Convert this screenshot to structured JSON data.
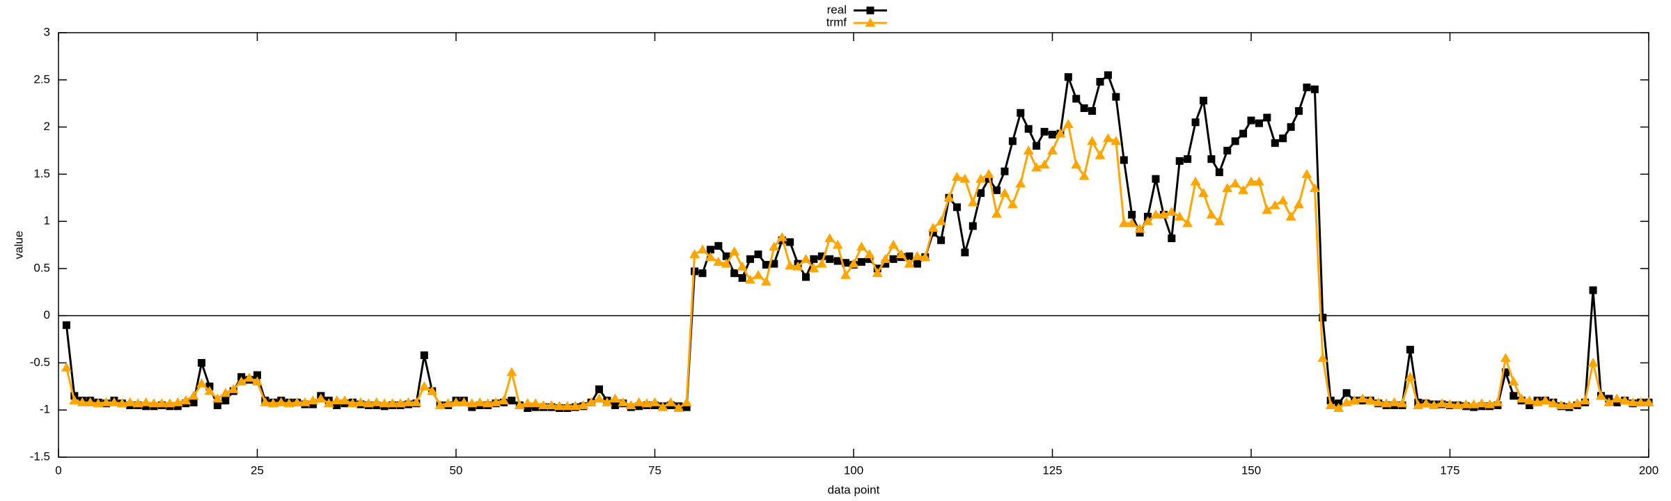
{
  "chart_data": {
    "type": "line",
    "xlabel": "data point",
    "ylabel": "value",
    "x": [
      1,
      2,
      3,
      4,
      5,
      6,
      7,
      8,
      9,
      10,
      11,
      12,
      13,
      14,
      15,
      16,
      17,
      18,
      19,
      20,
      21,
      22,
      23,
      24,
      25,
      26,
      27,
      28,
      29,
      30,
      31,
      32,
      33,
      34,
      35,
      36,
      37,
      38,
      39,
      40,
      41,
      42,
      43,
      44,
      45,
      46,
      47,
      48,
      49,
      50,
      51,
      52,
      53,
      54,
      55,
      56,
      57,
      58,
      59,
      60,
      61,
      62,
      63,
      64,
      65,
      66,
      67,
      68,
      69,
      70,
      71,
      72,
      73,
      74,
      75,
      76,
      77,
      78,
      79,
      80,
      81,
      82,
      83,
      84,
      85,
      86,
      87,
      88,
      89,
      90,
      91,
      92,
      93,
      94,
      95,
      96,
      97,
      98,
      99,
      100,
      101,
      102,
      103,
      104,
      105,
      106,
      107,
      108,
      109,
      110,
      111,
      112,
      113,
      114,
      115,
      116,
      117,
      118,
      119,
      120,
      121,
      122,
      123,
      124,
      125,
      126,
      127,
      128,
      129,
      130,
      131,
      132,
      133,
      134,
      135,
      136,
      137,
      138,
      139,
      140,
      141,
      142,
      143,
      144,
      145,
      146,
      147,
      148,
      149,
      150,
      151,
      152,
      153,
      154,
      155,
      156,
      157,
      158,
      159,
      160,
      161,
      162,
      163,
      164,
      165,
      166,
      167,
      168,
      169,
      170,
      171,
      172,
      173,
      174,
      175,
      176,
      177,
      178,
      179,
      180,
      181,
      182,
      183,
      184,
      185,
      186,
      187,
      188,
      189,
      190,
      191,
      192,
      193,
      194,
      195,
      196,
      197,
      198,
      199,
      200
    ],
    "series": [
      {
        "name": "real",
        "color": "#000000",
        "marker": "square",
        "values": [
          -0.1,
          -0.85,
          -0.9,
          -0.9,
          -0.92,
          -0.93,
          -0.9,
          -0.93,
          -0.95,
          -0.95,
          -0.96,
          -0.96,
          -0.95,
          -0.96,
          -0.96,
          -0.93,
          -0.92,
          -0.5,
          -0.75,
          -0.95,
          -0.9,
          -0.8,
          -0.65,
          -0.68,
          -0.63,
          -0.9,
          -0.92,
          -0.9,
          -0.92,
          -0.92,
          -0.94,
          -0.94,
          -0.85,
          -0.9,
          -0.95,
          -0.93,
          -0.92,
          -0.94,
          -0.95,
          -0.95,
          -0.96,
          -0.95,
          -0.95,
          -0.94,
          -0.93,
          -0.42,
          -0.8,
          -0.95,
          -0.95,
          -0.9,
          -0.9,
          -0.97,
          -0.95,
          -0.95,
          -0.93,
          -0.92,
          -0.9,
          -0.95,
          -0.98,
          -0.97,
          -0.97,
          -0.97,
          -0.98,
          -0.98,
          -0.97,
          -0.96,
          -0.92,
          -0.78,
          -0.9,
          -0.95,
          -0.93,
          -0.97,
          -0.96,
          -0.95,
          -0.95,
          -0.96,
          -0.95,
          -0.96,
          -0.97,
          0.47,
          0.45,
          0.7,
          0.74,
          0.63,
          0.45,
          0.4,
          0.6,
          0.65,
          0.54,
          0.55,
          0.8,
          0.78,
          0.55,
          0.41,
          0.6,
          0.63,
          0.6,
          0.58,
          0.56,
          0.54,
          0.57,
          0.6,
          0.5,
          0.55,
          0.6,
          0.62,
          0.63,
          0.55,
          0.62,
          0.88,
          0.8,
          1.25,
          1.15,
          0.67,
          0.95,
          1.3,
          1.45,
          1.33,
          1.53,
          1.85,
          2.15,
          1.98,
          1.8,
          1.95,
          1.92,
          1.93,
          2.53,
          2.3,
          2.2,
          2.17,
          2.48,
          2.55,
          2.32,
          1.65,
          1.07,
          0.88,
          1.05,
          1.45,
          1.07,
          0.82,
          1.64,
          1.66,
          2.05,
          2.28,
          1.66,
          1.52,
          1.75,
          1.85,
          1.93,
          2.07,
          2.04,
          2.1,
          1.83,
          1.88,
          2.0,
          2.17,
          2.42,
          2.4,
          -0.02,
          -0.9,
          -0.93,
          -0.82,
          -0.9,
          -0.9,
          -0.9,
          -0.93,
          -0.95,
          -0.95,
          -0.95,
          -0.36,
          -0.92,
          -0.93,
          -0.94,
          -0.94,
          -0.95,
          -0.95,
          -0.96,
          -0.97,
          -0.96,
          -0.96,
          -0.95,
          -0.6,
          -0.85,
          -0.9,
          -0.95,
          -0.9,
          -0.9,
          -0.92,
          -0.96,
          -0.97,
          -0.95,
          -0.92,
          0.27,
          -0.85,
          -0.88,
          -0.92,
          -0.9,
          -0.93,
          -0.92,
          -0.92
        ]
      },
      {
        "name": "trmf",
        "color": "#ffa500",
        "marker": "triangle",
        "values": [
          -0.55,
          -0.9,
          -0.92,
          -0.92,
          -0.93,
          -0.92,
          -0.92,
          -0.93,
          -0.92,
          -0.93,
          -0.92,
          -0.93,
          -0.93,
          -0.93,
          -0.92,
          -0.9,
          -0.85,
          -0.72,
          -0.8,
          -0.88,
          -0.82,
          -0.78,
          -0.7,
          -0.66,
          -0.7,
          -0.92,
          -0.93,
          -0.92,
          -0.93,
          -0.92,
          -0.92,
          -0.9,
          -0.88,
          -0.93,
          -0.9,
          -0.9,
          -0.93,
          -0.92,
          -0.93,
          -0.92,
          -0.93,
          -0.93,
          -0.93,
          -0.92,
          -0.92,
          -0.75,
          -0.8,
          -0.95,
          -0.93,
          -0.92,
          -0.92,
          -0.93,
          -0.92,
          -0.93,
          -0.92,
          -0.9,
          -0.6,
          -0.95,
          -0.93,
          -0.93,
          -0.95,
          -0.95,
          -0.96,
          -0.96,
          -0.96,
          -0.95,
          -0.92,
          -0.88,
          -0.92,
          -0.88,
          -0.92,
          -0.95,
          -0.92,
          -0.93,
          -0.92,
          -0.97,
          -0.92,
          -0.98,
          -0.92,
          0.65,
          0.7,
          0.62,
          0.57,
          0.55,
          0.68,
          0.52,
          0.38,
          0.43,
          0.36,
          0.73,
          0.83,
          0.53,
          0.52,
          0.6,
          0.5,
          0.55,
          0.82,
          0.75,
          0.43,
          0.55,
          0.73,
          0.65,
          0.45,
          0.6,
          0.75,
          0.65,
          0.55,
          0.63,
          0.62,
          0.93,
          1.0,
          1.25,
          1.47,
          1.45,
          1.2,
          1.45,
          1.5,
          1.08,
          1.3,
          1.18,
          1.4,
          1.75,
          1.57,
          1.6,
          1.75,
          1.93,
          2.03,
          1.6,
          1.48,
          1.85,
          1.7,
          1.88,
          1.85,
          0.98,
          0.98,
          0.92,
          1.0,
          1.07,
          1.07,
          1.1,
          1.05,
          0.98,
          1.42,
          1.3,
          1.07,
          1.0,
          1.35,
          1.4,
          1.33,
          1.42,
          1.42,
          1.12,
          1.17,
          1.22,
          1.05,
          1.18,
          1.5,
          1.35,
          -0.45,
          -0.95,
          -0.98,
          -0.92,
          -0.9,
          -0.88,
          -0.9,
          -0.92,
          -0.93,
          -0.92,
          -0.93,
          -0.65,
          -0.95,
          -0.93,
          -0.95,
          -0.93,
          -0.94,
          -0.95,
          -0.94,
          -0.94,
          -0.93,
          -0.94,
          -0.92,
          -0.45,
          -0.7,
          -0.88,
          -0.9,
          -0.92,
          -0.9,
          -0.93,
          -0.95,
          -0.95,
          -0.93,
          -0.9,
          -0.5,
          -0.85,
          -0.92,
          -0.88,
          -0.9,
          -0.92,
          -0.92,
          -0.92
        ]
      }
    ],
    "xlim": [
      0,
      200
    ],
    "xticks": [
      0,
      25,
      50,
      75,
      100,
      125,
      150,
      175,
      200
    ],
    "ylim": [
      -1.5,
      3
    ],
    "yticks": [
      -1.5,
      -1,
      -0.5,
      0,
      0.5,
      1,
      1.5,
      2,
      2.5,
      3
    ],
    "zero_line": true,
    "legend": "top-center"
  }
}
